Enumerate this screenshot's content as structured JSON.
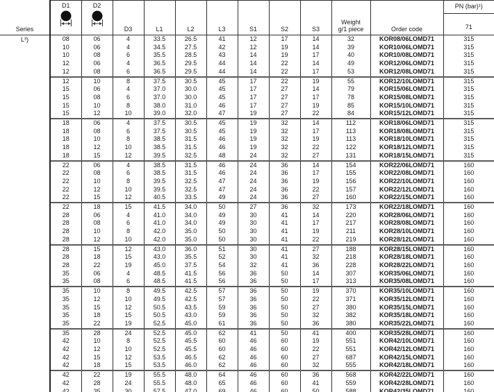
{
  "table": {
    "headers": {
      "series": "Series",
      "d1": "D1",
      "d2": "D2",
      "d3": "D3",
      "l1": "L1",
      "l2": "L2",
      "l3": "L3",
      "s1": "S1",
      "s2": "S2",
      "s3": "S3",
      "weight_line1": "Weight",
      "weight_line2": "g/1 piece",
      "order_code": "Order code",
      "pn": "PN (bar)¹)",
      "pn_sub": "71"
    },
    "series_value": "L³)",
    "column_keys": [
      "d1",
      "d2",
      "d3",
      "l1",
      "l2",
      "l3",
      "s1",
      "s2",
      "s3",
      "weight",
      "order_code",
      "pn"
    ],
    "groups": [
      {
        "rows": [
          [
            "08",
            "06",
            "4",
            "33.5",
            "26.5",
            "41",
            "12",
            "17",
            "14",
            "32",
            "KOR08/06LOMD71",
            "315"
          ],
          [
            "10",
            "06",
            "4",
            "34.5",
            "27.5",
            "42",
            "12",
            "19",
            "14",
            "39",
            "KOR10/06LOMD71",
            "315"
          ],
          [
            "10",
            "08",
            "6",
            "35.5",
            "28.5",
            "43",
            "14",
            "19",
            "17",
            "40",
            "KOR10/08LOMD71",
            "315"
          ],
          [
            "12",
            "06",
            "4",
            "36.5",
            "29.5",
            "44",
            "14",
            "22",
            "14",
            "49",
            "KOR12/06LOMD71",
            "315"
          ],
          [
            "12",
            "08",
            "6",
            "36.5",
            "29.5",
            "44",
            "14",
            "22",
            "17",
            "53",
            "KOR12/08LOMD71",
            "315"
          ]
        ]
      },
      {
        "rows": [
          [
            "12",
            "10",
            "8",
            "37.5",
            "30.5",
            "45",
            "17",
            "22",
            "19",
            "55",
            "KOR12/10LOMD71",
            "315"
          ],
          [
            "15",
            "06",
            "4",
            "37.0",
            "30.0",
            "45",
            "17",
            "27",
            "14",
            "79",
            "KOR15/06LOMD71",
            "315"
          ],
          [
            "15",
            "08",
            "6",
            "37.0",
            "30.0",
            "45",
            "17",
            "27",
            "17",
            "78",
            "KOR15/08LOMD71",
            "315"
          ],
          [
            "15",
            "10",
            "8",
            "38.0",
            "31.0",
            "46",
            "17",
            "27",
            "19",
            "85",
            "KOR15/10LOMD71",
            "315"
          ],
          [
            "15",
            "12",
            "10",
            "39.0",
            "32.0",
            "47",
            "19",
            "27",
            "22",
            "84",
            "KOR15/12LOMD71",
            "315"
          ]
        ]
      },
      {
        "rows": [
          [
            "18",
            "06",
            "4",
            "37.5",
            "30.5",
            "45",
            "19",
            "32",
            "14",
            "112",
            "KOR18/06LOMD71",
            "315"
          ],
          [
            "18",
            "08",
            "6",
            "37.5",
            "30.5",
            "45",
            "19",
            "32",
            "17",
            "113",
            "KOR18/08LOMD71",
            "315"
          ],
          [
            "18",
            "10",
            "8",
            "38.5",
            "31.5",
            "46",
            "19",
            "32",
            "19",
            "113",
            "KOR18/10LOMD71",
            "315"
          ],
          [
            "18",
            "12",
            "10",
            "38.5",
            "31.5",
            "46",
            "19",
            "32",
            "22",
            "122",
            "KOR18/12LOMD71",
            "315"
          ],
          [
            "18",
            "15",
            "12",
            "39.5",
            "32.5",
            "48",
            "24",
            "32",
            "27",
            "131",
            "KOR18/15LOMD71",
            "315"
          ]
        ]
      },
      {
        "rows": [
          [
            "22",
            "06",
            "4",
            "38.5",
            "31.5",
            "46",
            "24",
            "36",
            "14",
            "154",
            "KOR22/06LOMD71",
            "160"
          ],
          [
            "22",
            "08",
            "6",
            "38.5",
            "31.5",
            "46",
            "24",
            "36",
            "17",
            "155",
            "KOR22/08LOMD71",
            "160"
          ],
          [
            "22",
            "10",
            "8",
            "39.5",
            "32.5",
            "47",
            "24",
            "36",
            "19",
            "156",
            "KOR22/10LOMD71",
            "160"
          ],
          [
            "22",
            "12",
            "10",
            "39.5",
            "32.5",
            "47",
            "24",
            "36",
            "22",
            "157",
            "KOR22/12LOMD71",
            "160"
          ],
          [
            "22",
            "15",
            "12",
            "40.5",
            "33.5",
            "49",
            "24",
            "36",
            "27",
            "160",
            "KOR22/15LOMD71",
            "160"
          ]
        ]
      },
      {
        "rows": [
          [
            "22",
            "18",
            "15",
            "41.5",
            "34.0",
            "50",
            "27",
            "36",
            "32",
            "173",
            "KOR22/18LOMD71",
            "160"
          ],
          [
            "28",
            "06",
            "4",
            "41.0",
            "34.0",
            "49",
            "30",
            "41",
            "14",
            "220",
            "KOR28/06LOMD71",
            "160"
          ],
          [
            "28",
            "08",
            "6",
            "41.0",
            "34.0",
            "49",
            "30",
            "41",
            "17",
            "217",
            "KOR28/08LOMD71",
            "160"
          ],
          [
            "28",
            "10",
            "8",
            "42.0",
            "35.0",
            "50",
            "30",
            "41",
            "19",
            "211",
            "KOR28/10LOMD71",
            "160"
          ],
          [
            "28",
            "12",
            "10",
            "42.0",
            "35.0",
            "50",
            "30",
            "41",
            "22",
            "219",
            "KOR28/12LOMD71",
            "160"
          ]
        ]
      },
      {
        "rows": [
          [
            "28",
            "15",
            "12",
            "43.0",
            "36.0",
            "51",
            "30",
            "41",
            "27",
            "188",
            "KOR28/15LOMD71",
            "160"
          ],
          [
            "28",
            "18",
            "15",
            "43.0",
            "35.5",
            "52",
            "30",
            "41",
            "32",
            "218",
            "KOR28/18LOMD71",
            "160"
          ],
          [
            "28",
            "22",
            "19",
            "45.0",
            "37.5",
            "54",
            "32",
            "41",
            "36",
            "228",
            "KOR28/22LOMD71",
            "160"
          ],
          [
            "35",
            "06",
            "4",
            "48.5",
            "41.5",
            "56",
            "36",
            "50",
            "14",
            "307",
            "KOR35/06LOMD71",
            "160"
          ],
          [
            "35",
            "08",
            "6",
            "48.5",
            "41.5",
            "56",
            "36",
            "50",
            "17",
            "313",
            "KOR35/08LOMD71",
            "160"
          ]
        ]
      },
      {
        "rows": [
          [
            "35",
            "10",
            "8",
            "49.5",
            "42.5",
            "57",
            "36",
            "50",
            "19",
            "370",
            "KOR35/10LOMD71",
            "160"
          ],
          [
            "35",
            "12",
            "10",
            "49.5",
            "42.5",
            "57",
            "36",
            "50",
            "22",
            "371",
            "KOR35/12LOMD71",
            "160"
          ],
          [
            "35",
            "15",
            "12",
            "50.5",
            "43.5",
            "59",
            "36",
            "50",
            "27",
            "380",
            "KOR35/15LOMD71",
            "160"
          ],
          [
            "35",
            "18",
            "15",
            "50.5",
            "43.0",
            "59",
            "36",
            "50",
            "32",
            "382",
            "KOR35/18LOMD71",
            "160"
          ],
          [
            "35",
            "22",
            "19",
            "52.5",
            "45.0",
            "61",
            "36",
            "50",
            "36",
            "380",
            "KOR35/22LOMD71",
            "160"
          ]
        ]
      },
      {
        "rows": [
          [
            "35",
            "28",
            "24",
            "52.5",
            "45.0",
            "62",
            "41",
            "50",
            "41",
            "400",
            "KOR35/28LOMD71",
            "160"
          ],
          [
            "42",
            "10",
            "8",
            "52.5",
            "45.5",
            "60",
            "46",
            "60",
            "19",
            "551",
            "KOR42/10LOMD71",
            "160"
          ],
          [
            "42",
            "12",
            "10",
            "52.5",
            "45.5",
            "60",
            "46",
            "60",
            "22",
            "551",
            "KOR42/12LOMD71",
            "160"
          ],
          [
            "42",
            "15",
            "12",
            "53.5",
            "46.5",
            "62",
            "46",
            "60",
            "27",
            "687",
            "KOR42/15LOMD71",
            "160"
          ],
          [
            "42",
            "18",
            "15",
            "53.5",
            "46.0",
            "62",
            "46",
            "60",
            "32",
            "555",
            "KOR42/18LOMD71",
            "160"
          ]
        ]
      },
      {
        "rows": [
          [
            "42",
            "22",
            "19",
            "55.5",
            "48.0",
            "64",
            "46",
            "60",
            "36",
            "568",
            "KOR42/22LOMD71",
            "160"
          ],
          [
            "42",
            "28",
            "24",
            "55.5",
            "48.0",
            "65",
            "46",
            "60",
            "41",
            "559",
            "KOR42/28LOMD71",
            "160"
          ],
          [
            "42",
            "35",
            "30",
            "57.5",
            "47.0",
            "69",
            "46",
            "60",
            "50",
            "588",
            "KOR42/35LOMD71",
            "160"
          ]
        ]
      }
    ]
  }
}
